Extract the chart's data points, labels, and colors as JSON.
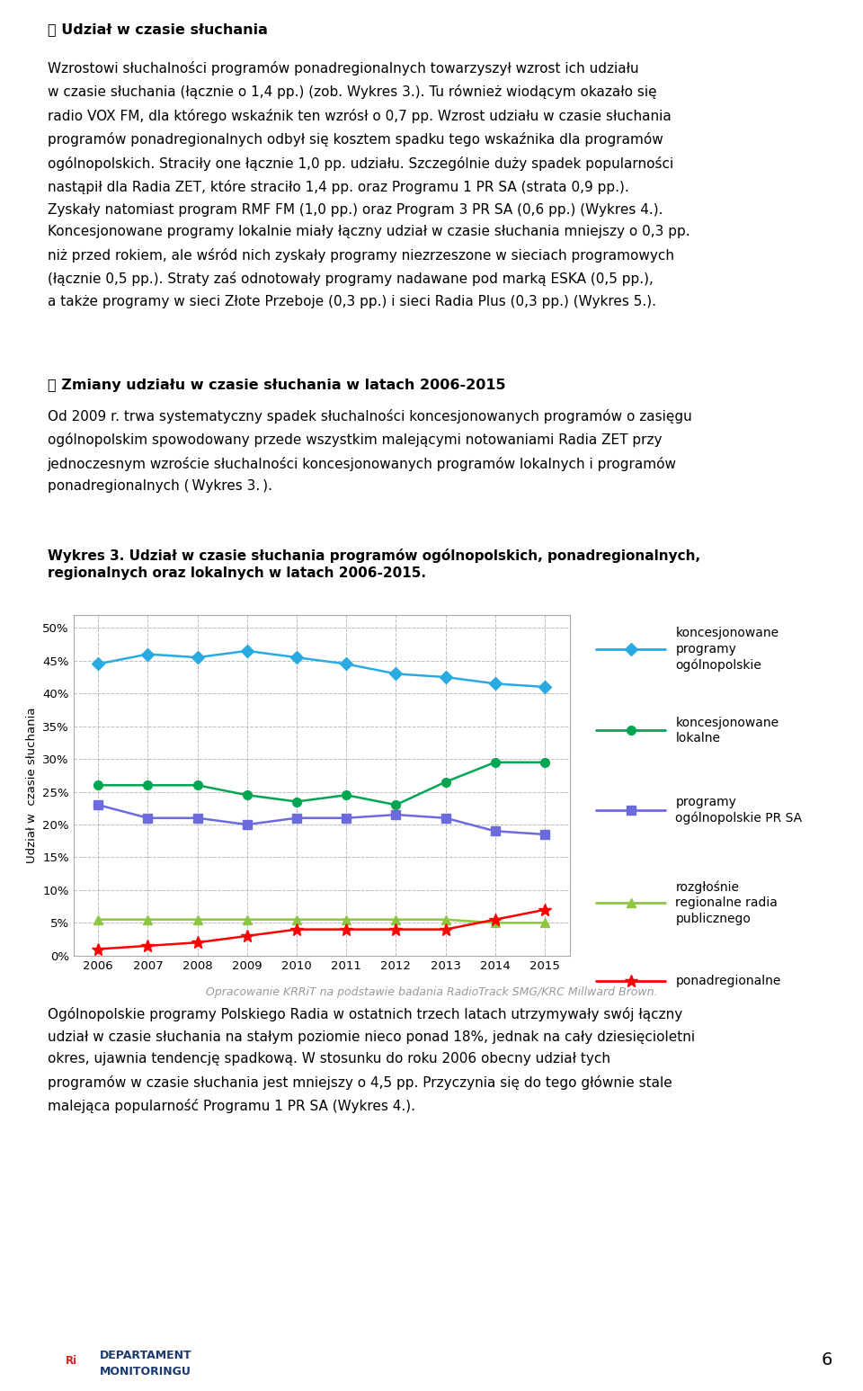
{
  "years": [
    2006,
    2007,
    2008,
    2009,
    2010,
    2011,
    2012,
    2013,
    2014,
    2015
  ],
  "koncesjonowane_ogolnopolskie": [
    44.5,
    46.0,
    45.5,
    46.5,
    45.5,
    44.5,
    43.0,
    42.5,
    41.5,
    41.0
  ],
  "koncesjonowane_lokalne": [
    26.0,
    26.0,
    26.0,
    24.5,
    23.5,
    24.5,
    23.0,
    26.5,
    29.5,
    29.5
  ],
  "programy_ogolnopolskie_prsa": [
    23.0,
    21.0,
    21.0,
    20.0,
    21.0,
    21.0,
    21.5,
    21.0,
    19.0,
    18.5
  ],
  "rozglosnie_regionalne": [
    5.5,
    5.5,
    5.5,
    5.5,
    5.5,
    5.5,
    5.5,
    5.5,
    5.0,
    5.0
  ],
  "ponadregionalne": [
    1.0,
    1.5,
    2.0,
    3.0,
    4.0,
    4.0,
    4.0,
    4.0,
    5.5,
    7.0
  ],
  "color_cyan": "#29ABE2",
  "color_green_dark": "#00A651",
  "color_purple": "#6B6BDD",
  "color_yellow_green": "#8DC63F",
  "color_red": "#FF0000",
  "legend_labels": [
    "koncesjonowane\nprogramy\nogólnopolskie",
    "koncesjonowane\nlokalne",
    "programy\nogólnopolskie PR SA",
    "rozgłośnie\nregionalne radia\npublicznego",
    "ponadregionalne"
  ],
  "ylabel": "Udział w  czasie słuchania",
  "source": "Opracowanie KRRiT na podstawie badania RadioTrack SMG/KRC Millward Brown.",
  "background_color": "#FFFFFF",
  "text_color": "#000000"
}
